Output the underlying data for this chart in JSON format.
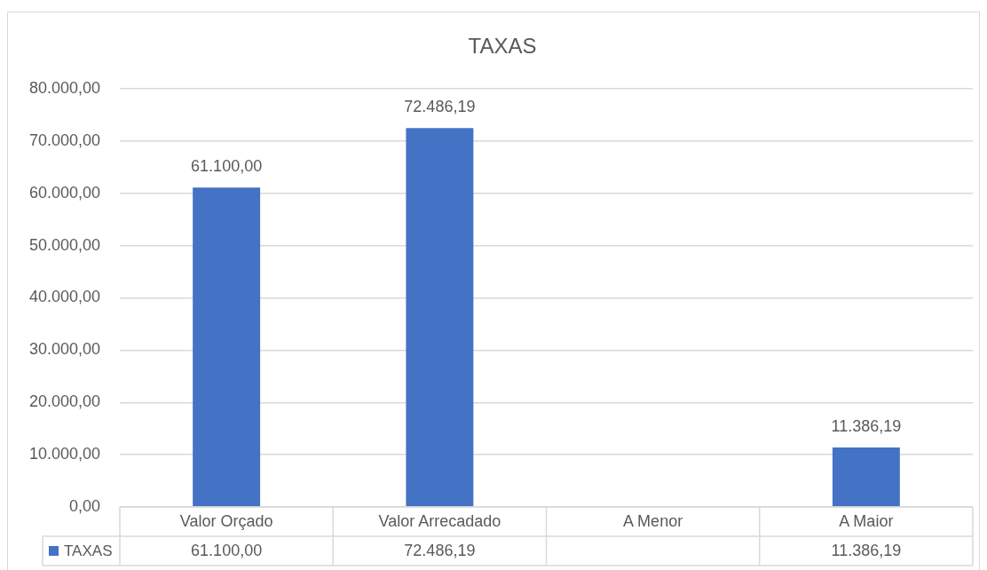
{
  "chart_data": {
    "type": "bar",
    "title": "TAXAS",
    "categories": [
      "Valor Orçado",
      "Valor Arrecadado",
      "A Menor",
      "A Maior"
    ],
    "series": [
      {
        "name": "TAXAS",
        "color": "#4472c4",
        "values": [
          61100,
          72486.19,
          null,
          11386.19
        ],
        "value_labels": [
          "61.100,00",
          "72.486,19",
          null,
          "11.386,19"
        ]
      }
    ],
    "ylim": [
      0,
      80000
    ],
    "yticks": [
      {
        "value": 0,
        "label": "0,00"
      },
      {
        "value": 10000,
        "label": "10.000,00"
      },
      {
        "value": 20000,
        "label": "20.000,00"
      },
      {
        "value": 30000,
        "label": "30.000,00"
      },
      {
        "value": 40000,
        "label": "40.000,00"
      },
      {
        "value": 50000,
        "label": "50.000,00"
      },
      {
        "value": 60000,
        "label": "60.000,00"
      },
      {
        "value": 70000,
        "label": "70.000,00"
      },
      {
        "value": 80000,
        "label": "80.000,00"
      }
    ],
    "grid": "y",
    "legend": "bottom"
  }
}
